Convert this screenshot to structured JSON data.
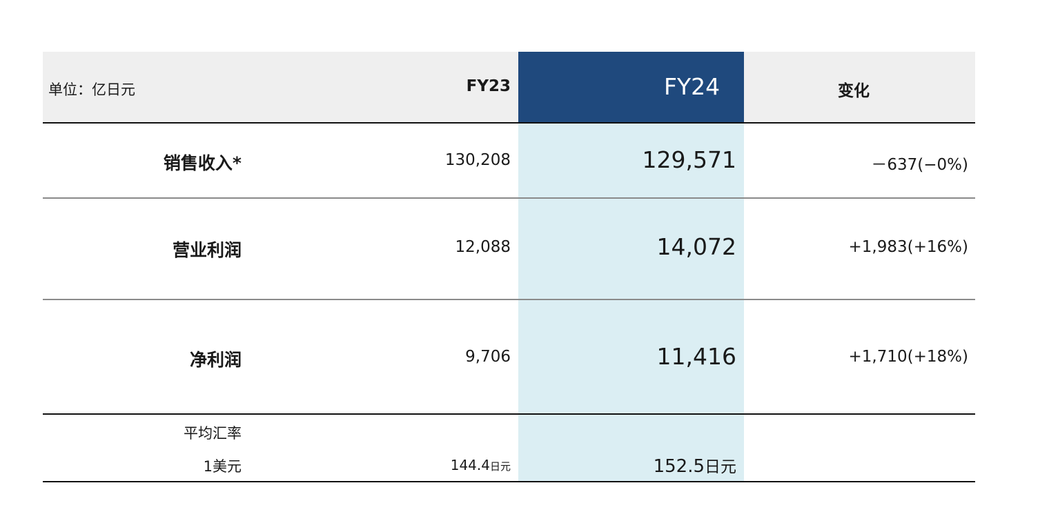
{
  "header": {
    "unit": "单位：亿日元",
    "fy23": "FY23",
    "fy24": "FY24",
    "change": "变化"
  },
  "rows": [
    {
      "label": "销售收入*",
      "fy23": "130,208",
      "fy24": "129,571",
      "change": "－637(−0%)"
    },
    {
      "label": "营业利润",
      "fy23": "12,088",
      "fy24": "14,072",
      "change": "+1,983(+16%)"
    },
    {
      "label": "净利润",
      "fy23": "9,706",
      "fy24": "11,416",
      "change": "+1,710(+18%)"
    }
  ],
  "fx": {
    "label_line1": "平均汇率",
    "label_line2": "1美元",
    "fy23_value": "144.4",
    "fy23_unit": "日元",
    "fy24_value": "152.5",
    "fy24_unit": "日元"
  },
  "colors": {
    "header_bg": "#efefef",
    "fy24_header": "#1f497d",
    "fy24_body": "#dbeef3"
  }
}
